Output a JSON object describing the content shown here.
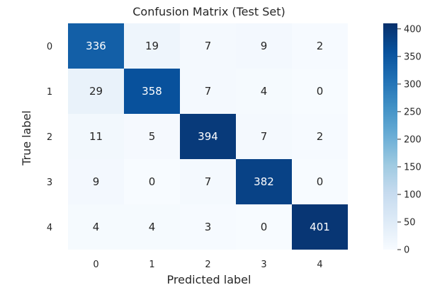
{
  "chart_data": {
    "type": "heatmap",
    "title": "Confusion Matrix (Test Set)",
    "xlabel": "Predicted label",
    "ylabel": "True label",
    "x_categories": [
      "0",
      "1",
      "2",
      "3",
      "4"
    ],
    "y_categories": [
      "0",
      "1",
      "2",
      "3",
      "4"
    ],
    "values": [
      [
        336,
        19,
        7,
        9,
        2
      ],
      [
        29,
        358,
        7,
        4,
        0
      ],
      [
        11,
        5,
        394,
        7,
        2
      ],
      [
        9,
        0,
        7,
        382,
        0
      ],
      [
        4,
        4,
        3,
        0,
        401
      ]
    ],
    "colormap": "Blues",
    "color_low": "#f7fbff",
    "color_high": "#08306b",
    "vmin": 0,
    "vmax": 410,
    "colorbar_ticks": [
      0,
      50,
      100,
      150,
      200,
      250,
      300,
      350,
      400
    ],
    "colorbar_tick_labels": [
      "0",
      "50",
      "100",
      "150",
      "200",
      "250",
      "300",
      "350",
      "400"
    ]
  }
}
